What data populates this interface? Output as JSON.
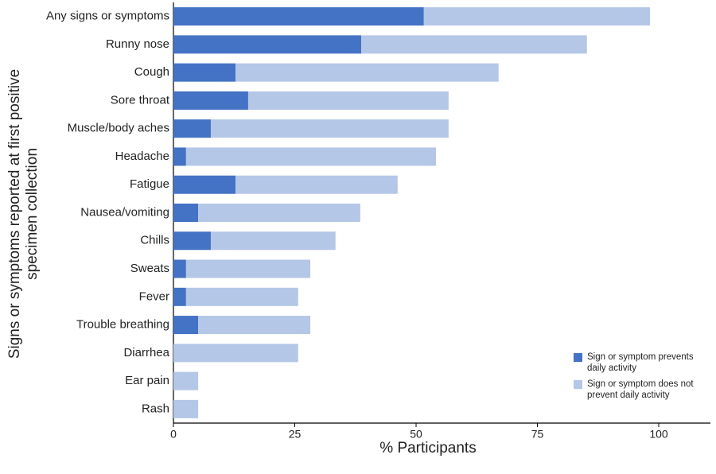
{
  "chart_data": {
    "type": "stacked-bar-horizontal",
    "y_label": "Signs or symptoms reported at first positive specimen collection",
    "x_label": "% Participants",
    "categories": [
      "Any signs or symptoms",
      "Runny nose",
      "Cough",
      "Sore throat",
      "Muscle/body aches",
      "Headache",
      "Fatigue",
      "Nausea/vomiting",
      "Chills",
      "Sweats",
      "Fever",
      "Trouble breathing",
      "Diarrhea",
      "Ear pain",
      "Rash"
    ],
    "series": [
      {
        "name": "Sign or symptom prevents daily activity",
        "color": "#4472c4",
        "values": [
          51.6,
          38.7,
          12.8,
          15.4,
          7.7,
          2.6,
          12.8,
          5.1,
          7.7,
          2.6,
          2.6,
          5.1,
          0,
          0,
          0
        ]
      },
      {
        "name": "Sign or symptom does not prevent daily activity",
        "color": "#b4c7e7",
        "values": [
          46.6,
          46.5,
          54.2,
          41.3,
          49.0,
          51.5,
          33.4,
          33.4,
          25.7,
          25.6,
          23.1,
          23.1,
          25.7,
          5.1,
          5.1
        ]
      }
    ],
    "xlim": [
      0,
      110
    ],
    "xticks": [
      0,
      25,
      50,
      75,
      100
    ],
    "legend": "lower right"
  }
}
